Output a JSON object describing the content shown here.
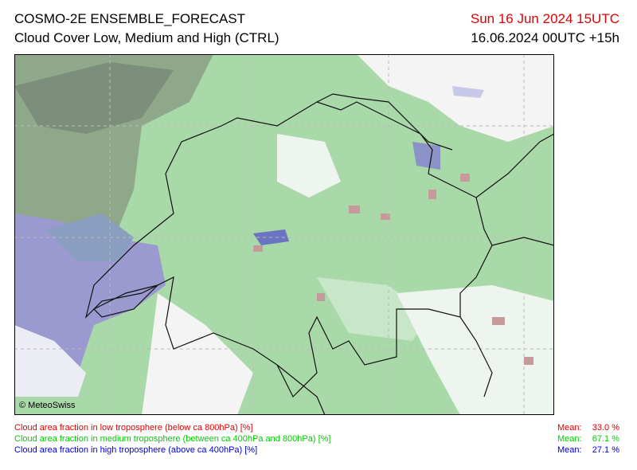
{
  "header": {
    "title": "COSMO-2E ENSEMBLE_FORECAST",
    "subtitle": "Cloud Cover Low, Medium and High (CTRL)",
    "valid_time": "Sun 16 Jun 2024 15UTC",
    "run": "16.06.2024 00UTC +15h"
  },
  "map": {
    "copyright": "© MeteoSwiss"
  },
  "legend": [
    {
      "label": "Cloud area fraction in low troposphere (below ca 800hPa) [%]",
      "mean_label": "Mean:",
      "mean": "33.0 %"
    },
    {
      "label": "Cloud area fraction in medium troposphere (between ca 400hPa and 800hPa) [%]",
      "mean_label": "Mean:",
      "mean": "67.1 %"
    },
    {
      "label": "Cloud area fraction in high troposphere (above ca 400hPa) [%]",
      "mean_label": "Mean:",
      "mean": "27.1 %"
    }
  ]
}
